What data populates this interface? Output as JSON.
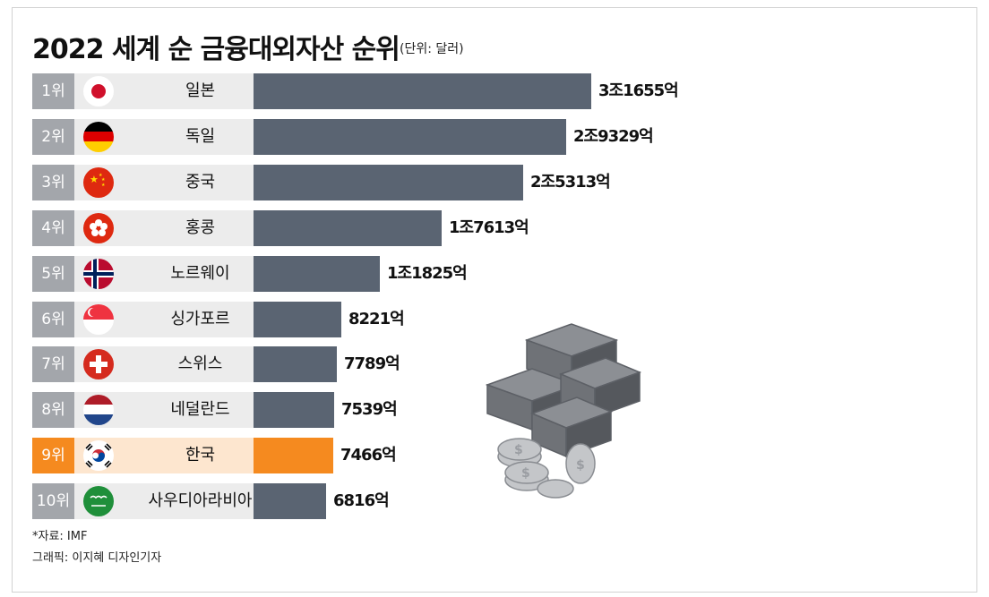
{
  "title": "2022 세계 순 금융대외자산 순위",
  "unit": "(단위: 달러)",
  "colors": {
    "bar": "#5a6472",
    "highlight": "#f58a1f",
    "rank_bg": "#a3a6ab",
    "label_bg": "#ececec"
  },
  "chart_data": {
    "type": "bar",
    "orientation": "horizontal",
    "title": "2022 세계 순 금융대외자산 순위",
    "unit_label": "(단위: 달러)",
    "ranks": [
      "1위",
      "2위",
      "3위",
      "4위",
      "5위",
      "6위",
      "7위",
      "8위",
      "9위",
      "10위"
    ],
    "categories": [
      "일본",
      "독일",
      "중국",
      "홍콩",
      "노르웨이",
      "싱가포르",
      "스위스",
      "네덜란드",
      "한국",
      "사우디아라비아"
    ],
    "values": [
      31655,
      29329,
      25313,
      17613,
      11825,
      8221,
      7789,
      7539,
      7466,
      6816
    ],
    "value_unit": "억 달러",
    "labels": [
      "3조1655억",
      "2조9329억",
      "2조5313억",
      "1조7613억",
      "1조1825억",
      "8221억",
      "7789억",
      "7539억",
      "7466억",
      "6816억"
    ],
    "flags": [
      "japan",
      "germany",
      "china",
      "hong-kong",
      "norway",
      "singapore",
      "switzerland",
      "netherlands",
      "south-korea",
      "saudi-arabia"
    ],
    "highlight_index": 8
  },
  "footer": {
    "source": "*자료: IMF",
    "credit": "그래픽: 이지혜 디자인기자"
  }
}
